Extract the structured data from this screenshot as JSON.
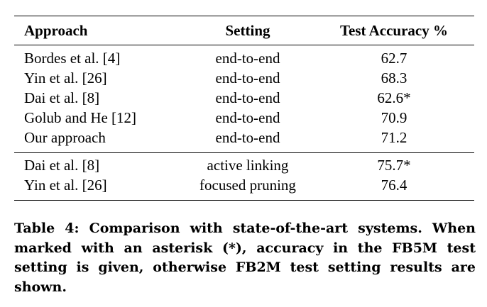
{
  "table": {
    "headers": [
      "Approach",
      "Setting",
      "Test Accuracy %"
    ],
    "group1": [
      {
        "approach": "Bordes et al. [4]",
        "setting": "end-to-end",
        "accuracy": "62.7"
      },
      {
        "approach": "Yin et al. [26]",
        "setting": "end-to-end",
        "accuracy": "68.3"
      },
      {
        "approach": "Dai et al. [8]",
        "setting": "end-to-end",
        "accuracy": "62.6*"
      },
      {
        "approach": "Golub and He [12]",
        "setting": "end-to-end",
        "accuracy": "70.9"
      },
      {
        "approach": "Our approach",
        "setting": "end-to-end",
        "accuracy": "71.2"
      }
    ],
    "group2": [
      {
        "approach": "Dai et al. [8]",
        "setting": "active linking",
        "accuracy": "75.7*"
      },
      {
        "approach": "Yin et al. [26]",
        "setting": "focused pruning",
        "accuracy": "76.4"
      }
    ]
  },
  "caption": "Table 4: Comparison with state-of-the-art systems. When marked with an asterisk (*), accuracy in the FB5M test setting is given, otherwise FB2M test setting results are shown."
}
